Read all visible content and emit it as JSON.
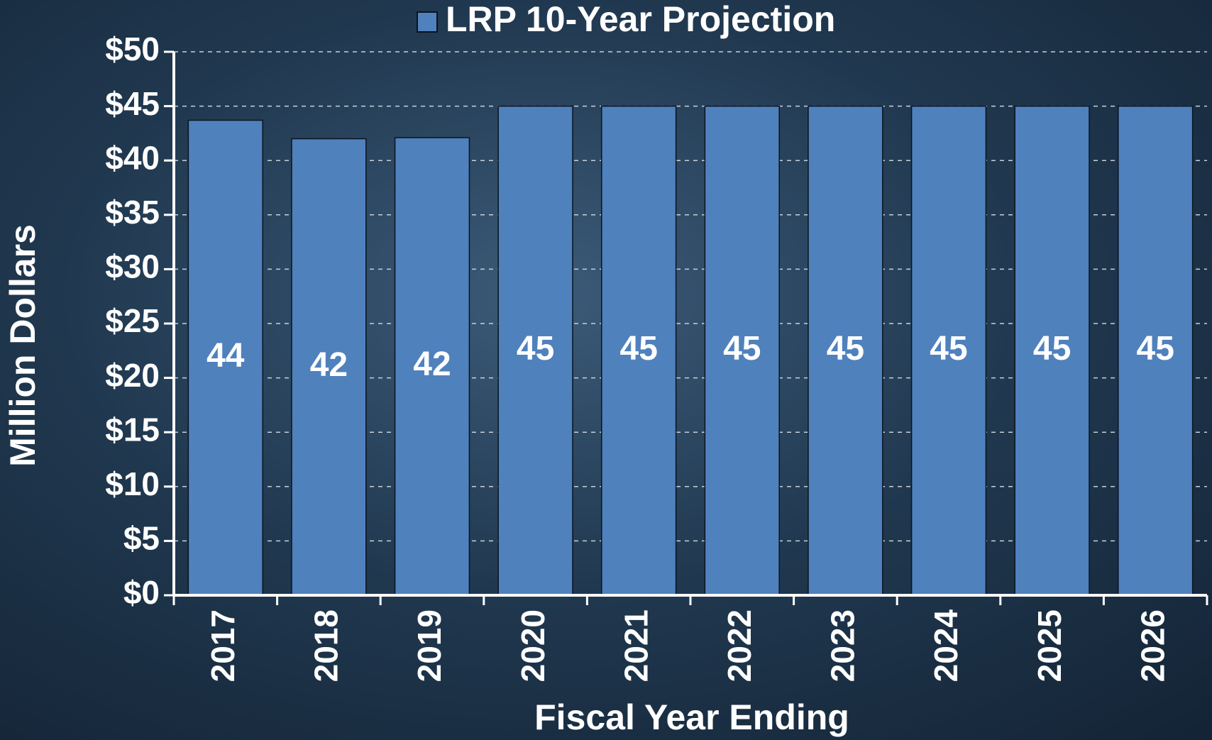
{
  "chart_data": {
    "type": "bar",
    "x_label": "Fiscal Year Ending",
    "y_label": "Million Dollars",
    "categories": [
      "2017",
      "2018",
      "2019",
      "2020",
      "2021",
      "2022",
      "2023",
      "2024",
      "2025",
      "2026"
    ],
    "series": [
      {
        "name": "LRP 10-Year Projection",
        "color": "#4f81bd",
        "values": [
          43.7,
          42.0,
          42.1,
          45,
          45,
          45,
          45,
          45,
          45,
          45
        ],
        "value_labels": [
          "44",
          "42",
          "42",
          "45",
          "45",
          "45",
          "45",
          "45",
          "45",
          "45"
        ]
      }
    ],
    "ylim": [
      0,
      50
    ],
    "yticks": [
      {
        "value": 0,
        "label": "$0"
      },
      {
        "value": 5,
        "label": "$5"
      },
      {
        "value": 10,
        "label": "$10"
      },
      {
        "value": 15,
        "label": "$15"
      },
      {
        "value": 20,
        "label": "$20"
      },
      {
        "value": 25,
        "label": "$25"
      },
      {
        "value": 30,
        "label": "$30"
      },
      {
        "value": 35,
        "label": "$35"
      },
      {
        "value": 40,
        "label": "$40"
      },
      {
        "value": 45,
        "label": "$45"
      },
      {
        "value": 50,
        "label": "$50"
      }
    ],
    "grid": true,
    "legend": "top"
  }
}
